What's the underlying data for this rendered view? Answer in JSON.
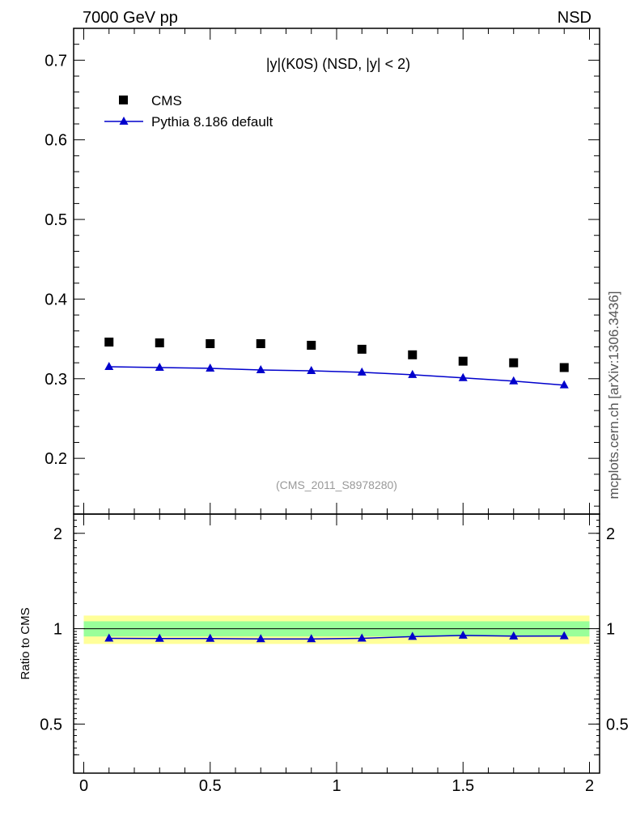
{
  "header": {
    "left": "7000 GeV pp",
    "right": "NSD",
    "side_label": "mcplots.cern.ch [arXiv:1306.3436]"
  },
  "main_plot": {
    "title": "|y|(K0S) (NSD, |y| < 2)",
    "watermark": "(CMS_2011_S8978280)",
    "legend": [
      {
        "label": "CMS",
        "marker": "square",
        "color": "#000000"
      },
      {
        "label": "Pythia 8.186 default",
        "marker": "triangle",
        "color": "#0000cc"
      }
    ]
  },
  "ratio_plot": {
    "ylabel": "Ratio to CMS"
  },
  "chart_data": [
    {
      "type": "scatter",
      "title": "|y|(K0S) (NSD, |y| < 2)",
      "xlim": [
        -0.04,
        2.04
      ],
      "ylim": [
        0.13,
        0.74
      ],
      "y_ticks": [
        0.2,
        0.3,
        0.4,
        0.5,
        0.6,
        0.7
      ],
      "y_tick_labels": [
        "0.2",
        "0.3",
        "0.4",
        "0.5",
        "0.6",
        "0.7"
      ],
      "legend_position": "top-left",
      "series": [
        {
          "name": "CMS",
          "marker": "square",
          "color": "#000000",
          "x": [
            0.1,
            0.3,
            0.5,
            0.7,
            0.9,
            1.1,
            1.3,
            1.5,
            1.7,
            1.9
          ],
          "y": [
            0.346,
            0.345,
            0.344,
            0.344,
            0.342,
            0.337,
            0.33,
            0.322,
            0.32,
            0.314
          ]
        },
        {
          "name": "Pythia 8.186 default",
          "marker": "triangle",
          "color": "#0000cc",
          "x": [
            0.1,
            0.3,
            0.5,
            0.7,
            0.9,
            1.1,
            1.3,
            1.5,
            1.7,
            1.9
          ],
          "y": [
            0.315,
            0.314,
            0.313,
            0.311,
            0.31,
            0.308,
            0.305,
            0.301,
            0.297,
            0.292
          ]
        }
      ]
    },
    {
      "type": "line",
      "ylabel": "Ratio to CMS",
      "xlim": [
        -0.04,
        2.04
      ],
      "ylim": [
        0.35,
        2.3
      ],
      "x_ticks": [
        0,
        0.5,
        1,
        1.5,
        2
      ],
      "x_tick_labels": [
        "0",
        "0.5",
        "1",
        "1.5",
        "2"
      ],
      "y_ticks": [
        0.5,
        1,
        2
      ],
      "y_tick_labels": [
        "0.5",
        "1",
        "2"
      ],
      "bands": [
        {
          "kind": "outer",
          "color": "#ffff99",
          "low": 0.895,
          "high": 1.1
        },
        {
          "kind": "inner",
          "color": "#99ff99",
          "low": 0.945,
          "high": 1.055
        }
      ],
      "reference_line": 1,
      "series": [
        {
          "name": "Pythia 8.186 default",
          "color": "#0000cc",
          "marker": "triangle",
          "x": [
            0.1,
            0.3,
            0.5,
            0.7,
            0.9,
            1.1,
            1.3,
            1.5,
            1.7,
            1.9
          ],
          "y": [
            0.932,
            0.931,
            0.931,
            0.928,
            0.928,
            0.932,
            0.944,
            0.952,
            0.947,
            0.948
          ]
        }
      ]
    }
  ]
}
